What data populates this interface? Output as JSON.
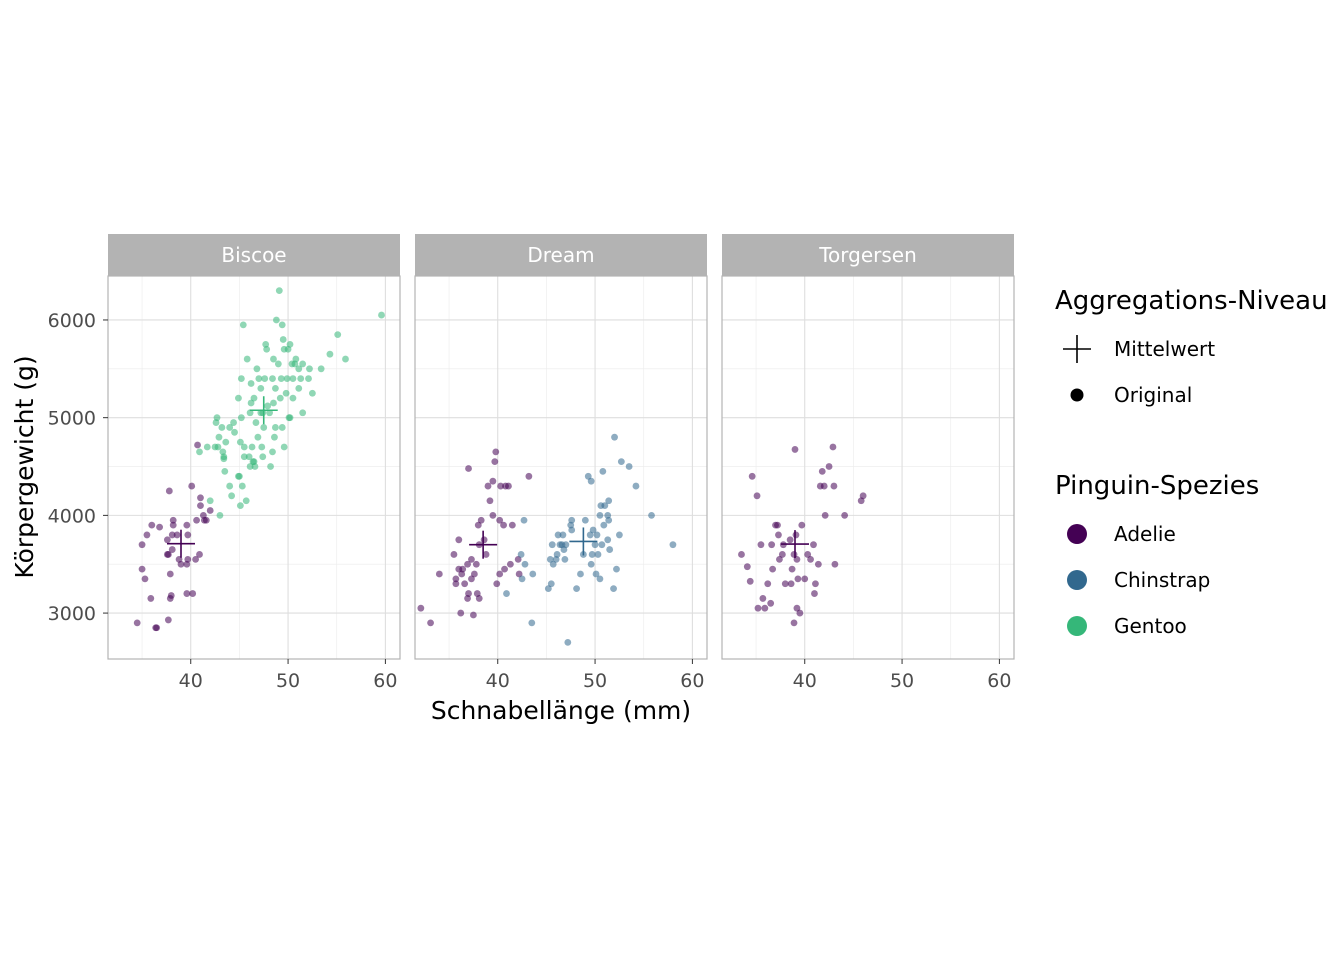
{
  "chart_data": {
    "type": "scatter",
    "xlabel": "Schnabellänge (mm)",
    "ylabel": "Körpergewicht (g)",
    "xlim": [
      31.5,
      61.5
    ],
    "ylim": [
      2530,
      6450
    ],
    "x_ticks": [
      40,
      50,
      60
    ],
    "y_ticks": [
      3000,
      4000,
      5000,
      6000
    ],
    "grid": true,
    "facets": [
      "Biscoe",
      "Dream",
      "Torgersen"
    ],
    "species": [
      {
        "name": "Adelie",
        "color": "#440154"
      },
      {
        "name": "Chinstrap",
        "color": "#31688E"
      },
      {
        "name": "Gentoo",
        "color": "#35B779"
      }
    ],
    "legend": {
      "position": "right",
      "aggregation_title": "Aggregations-Niveau",
      "aggregation_items": [
        {
          "label": "Mittelwert",
          "shape": "cross"
        },
        {
          "label": "Original",
          "shape": "point"
        }
      ],
      "species_title": "Pinguin-Spezies",
      "species_items": [
        "Adelie",
        "Chinstrap",
        "Gentoo"
      ]
    },
    "means": [
      {
        "facet": "Biscoe",
        "species": "Adelie",
        "x": 39.0,
        "y": 3710
      },
      {
        "facet": "Biscoe",
        "species": "Gentoo",
        "x": 47.5,
        "y": 5076
      },
      {
        "facet": "Dream",
        "species": "Adelie",
        "x": 38.5,
        "y": 3700
      },
      {
        "facet": "Dream",
        "species": "Chinstrap",
        "x": 48.8,
        "y": 3733
      },
      {
        "facet": "Torgersen",
        "species": "Adelie",
        "x": 39.0,
        "y": 3706
      }
    ],
    "points": {
      "Biscoe": {
        "Adelie": [
          [
            34.5,
            2900
          ],
          [
            35.0,
            3450
          ],
          [
            35.3,
            3350
          ],
          [
            35.5,
            3800
          ],
          [
            35.0,
            3700
          ],
          [
            35.9,
            3150
          ],
          [
            36.5,
            2850
          ],
          [
            36.4,
            2850
          ],
          [
            37.6,
            3750
          ],
          [
            37.7,
            3600
          ],
          [
            37.8,
            4250
          ],
          [
            37.9,
            3400
          ],
          [
            38.1,
            3650
          ],
          [
            38.2,
            3950
          ],
          [
            38.2,
            3900
          ],
          [
            38.6,
            3800
          ],
          [
            38.8,
            3550
          ],
          [
            39.0,
            3500
          ],
          [
            39.6,
            3500
          ],
          [
            39.7,
            3800
          ],
          [
            39.7,
            3550
          ],
          [
            39.6,
            3900
          ],
          [
            40.1,
            4300
          ],
          [
            40.5,
            3550
          ],
          [
            40.6,
            3950
          ],
          [
            40.9,
            3600
          ],
          [
            41.0,
            4100
          ],
          [
            41.3,
            4000
          ],
          [
            41.4,
            3950
          ],
          [
            41.6,
            3950
          ],
          [
            42.0,
            4050
          ],
          [
            39.6,
            3200
          ],
          [
            40.2,
            3200
          ],
          [
            37.7,
            2930
          ],
          [
            37.9,
            3150
          ],
          [
            38.0,
            3180
          ],
          [
            36.0,
            3900
          ],
          [
            36.8,
            3880
          ],
          [
            40.7,
            4720
          ],
          [
            41.0,
            4180
          ],
          [
            37.6,
            3600
          ],
          [
            38.1,
            3800
          ]
        ],
        "Gentoo": [
          [
            40.9,
            4650
          ],
          [
            41.7,
            4700
          ],
          [
            42.0,
            4150
          ],
          [
            42.5,
            4700
          ],
          [
            42.6,
            4950
          ],
          [
            42.7,
            5000
          ],
          [
            42.8,
            4700
          ],
          [
            43.2,
            4900
          ],
          [
            43.3,
            4650
          ],
          [
            43.4,
            4600
          ],
          [
            43.5,
            4450
          ],
          [
            43.6,
            4750
          ],
          [
            44.0,
            4300
          ],
          [
            44.4,
            4950
          ],
          [
            44.5,
            4850
          ],
          [
            44.9,
            5200
          ],
          [
            45.0,
            4400
          ],
          [
            45.1,
            4750
          ],
          [
            45.2,
            5400
          ],
          [
            45.3,
            4300
          ],
          [
            45.4,
            5950
          ],
          [
            45.5,
            4700
          ],
          [
            45.7,
            4150
          ],
          [
            45.8,
            5600
          ],
          [
            46.0,
            4600
          ],
          [
            46.1,
            5050
          ],
          [
            46.2,
            5150
          ],
          [
            46.3,
            4700
          ],
          [
            46.4,
            4550
          ],
          [
            46.5,
            5200
          ],
          [
            46.6,
            4500
          ],
          [
            46.8,
            5500
          ],
          [
            46.9,
            4800
          ],
          [
            47.0,
            5400
          ],
          [
            47.2,
            5300
          ],
          [
            47.3,
            4700
          ],
          [
            47.4,
            5050
          ],
          [
            47.5,
            4900
          ],
          [
            47.6,
            5400
          ],
          [
            47.7,
            5750
          ],
          [
            47.8,
            5700
          ],
          [
            48.1,
            5050
          ],
          [
            48.2,
            4500
          ],
          [
            48.4,
            5400
          ],
          [
            48.5,
            5600
          ],
          [
            48.6,
            4800
          ],
          [
            48.7,
            5300
          ],
          [
            48.8,
            6000
          ],
          [
            49.0,
            5550
          ],
          [
            49.1,
            6300
          ],
          [
            49.2,
            5200
          ],
          [
            49.3,
            5400
          ],
          [
            49.4,
            5950
          ],
          [
            49.5,
            5800
          ],
          [
            49.6,
            5700
          ],
          [
            49.8,
            5250
          ],
          [
            49.9,
            5400
          ],
          [
            50.0,
            5700
          ],
          [
            50.1,
            5000
          ],
          [
            50.2,
            5750
          ],
          [
            50.4,
            5550
          ],
          [
            50.5,
            5400
          ],
          [
            50.7,
            5550
          ],
          [
            50.8,
            5600
          ],
          [
            51.1,
            5500
          ],
          [
            51.3,
            5400
          ],
          [
            51.5,
            5550
          ],
          [
            52.1,
            5400
          ],
          [
            52.2,
            5500
          ],
          [
            52.5,
            5250
          ],
          [
            53.4,
            5500
          ],
          [
            54.3,
            5650
          ],
          [
            55.1,
            5850
          ],
          [
            55.9,
            5600
          ],
          [
            59.6,
            6050
          ],
          [
            43.0,
            4000
          ],
          [
            44.2,
            4200
          ],
          [
            45.1,
            4100
          ],
          [
            46.5,
            4550
          ],
          [
            47.2,
            5050
          ],
          [
            48.5,
            5150
          ],
          [
            49.4,
            4900
          ],
          [
            50.5,
            5200
          ],
          [
            51.1,
            5300
          ],
          [
            49.6,
            4700
          ],
          [
            50.2,
            5000
          ],
          [
            47.4,
            4600
          ],
          [
            45.5,
            4600
          ],
          [
            44.9,
            4400
          ],
          [
            46.7,
            4950
          ],
          [
            48.4,
            4650
          ],
          [
            46.1,
            4500
          ],
          [
            43.4,
            4580
          ],
          [
            42.9,
            4800
          ],
          [
            45.2,
            5000
          ],
          [
            47.9,
            5120
          ],
          [
            44.0,
            4900
          ],
          [
            46.2,
            5350
          ],
          [
            48.7,
            4900
          ],
          [
            51.5,
            5050
          ]
        ]
      },
      "Dream": {
        "Adelie": [
          [
            32.1,
            3050
          ],
          [
            33.1,
            2900
          ],
          [
            34.0,
            3400
          ],
          [
            35.7,
            3350
          ],
          [
            35.7,
            3300
          ],
          [
            36.0,
            3450
          ],
          [
            36.0,
            3750
          ],
          [
            36.2,
            3000
          ],
          [
            36.3,
            3400
          ],
          [
            36.4,
            3450
          ],
          [
            36.6,
            3300
          ],
          [
            36.9,
            3500
          ],
          [
            37.0,
            3200
          ],
          [
            37.3,
            3550
          ],
          [
            37.3,
            3350
          ],
          [
            37.5,
            2980
          ],
          [
            37.6,
            3400
          ],
          [
            37.8,
            3500
          ],
          [
            38.1,
            3700
          ],
          [
            38.1,
            3150
          ],
          [
            38.3,
            3950
          ],
          [
            38.6,
            3750
          ],
          [
            38.8,
            3600
          ],
          [
            39.0,
            4300
          ],
          [
            39.2,
            4150
          ],
          [
            39.5,
            4350
          ],
          [
            39.7,
            4550
          ],
          [
            39.8,
            4650
          ],
          [
            40.2,
            3950
          ],
          [
            40.2,
            3400
          ],
          [
            40.3,
            4300
          ],
          [
            40.6,
            3900
          ],
          [
            40.7,
            3450
          ],
          [
            41.1,
            4300
          ],
          [
            41.5,
            3900
          ],
          [
            41.3,
            3500
          ],
          [
            42.1,
            3550
          ],
          [
            42.2,
            3400
          ],
          [
            43.2,
            4400
          ],
          [
            37.0,
            4480
          ],
          [
            38.0,
            3900
          ],
          [
            39.5,
            4000
          ],
          [
            35.5,
            3600
          ],
          [
            36.9,
            3150
          ],
          [
            37.9,
            3200
          ],
          [
            40.8,
            4300
          ],
          [
            39.9,
            3300
          ]
        ],
        "Chinstrap": [
          [
            40.9,
            3200
          ],
          [
            42.4,
            3600
          ],
          [
            42.5,
            3350
          ],
          [
            42.8,
            3500
          ],
          [
            43.5,
            2900
          ],
          [
            45.2,
            3250
          ],
          [
            45.4,
            3550
          ],
          [
            45.6,
            3700
          ],
          [
            45.5,
            3300
          ],
          [
            46.0,
            3550
          ],
          [
            46.1,
            3600
          ],
          [
            46.2,
            3800
          ],
          [
            46.4,
            3700
          ],
          [
            46.6,
            3700
          ],
          [
            46.7,
            3800
          ],
          [
            46.8,
            3650
          ],
          [
            46.9,
            3550
          ],
          [
            47.0,
            3700
          ],
          [
            47.5,
            3900
          ],
          [
            47.6,
            3850
          ],
          [
            48.1,
            3250
          ],
          [
            48.5,
            3400
          ],
          [
            49.0,
            3950
          ],
          [
            49.3,
            4400
          ],
          [
            49.5,
            3800
          ],
          [
            49.6,
            3500
          ],
          [
            49.7,
            3600
          ],
          [
            50.0,
            3700
          ],
          [
            50.1,
            3400
          ],
          [
            50.2,
            3800
          ],
          [
            50.3,
            3600
          ],
          [
            50.5,
            4000
          ],
          [
            50.6,
            4100
          ],
          [
            50.8,
            4450
          ],
          [
            51.0,
            4100
          ],
          [
            51.3,
            3750
          ],
          [
            51.4,
            3950
          ],
          [
            51.5,
            3650
          ],
          [
            51.9,
            3250
          ],
          [
            52.0,
            4800
          ],
          [
            52.7,
            4550
          ],
          [
            53.5,
            4500
          ],
          [
            54.2,
            4300
          ],
          [
            55.8,
            4000
          ],
          [
            58.0,
            3700
          ],
          [
            42.7,
            3950
          ],
          [
            47.2,
            2700
          ],
          [
            49.8,
            3850
          ],
          [
            50.5,
            3350
          ],
          [
            48.8,
            3600
          ],
          [
            49.6,
            4350
          ],
          [
            51.3,
            4000
          ],
          [
            50.9,
            3900
          ],
          [
            52.2,
            3450
          ],
          [
            47.6,
            3950
          ],
          [
            43.6,
            3400
          ],
          [
            45.7,
            3500
          ],
          [
            51.4,
            4150
          ],
          [
            50.7,
            3700
          ],
          [
            52.5,
            3800
          ]
        ]
      },
      "Torgersen": {
        "Adelie": [
          [
            33.5,
            3600
          ],
          [
            34.1,
            3475
          ],
          [
            34.4,
            3325
          ],
          [
            34.6,
            4400
          ],
          [
            35.1,
            4200
          ],
          [
            35.2,
            3050
          ],
          [
            35.5,
            3700
          ],
          [
            35.7,
            3150
          ],
          [
            35.9,
            3050
          ],
          [
            36.2,
            3300
          ],
          [
            36.6,
            3700
          ],
          [
            36.7,
            3450
          ],
          [
            37.2,
            3900
          ],
          [
            37.3,
            3800
          ],
          [
            37.7,
            3600
          ],
          [
            37.8,
            3700
          ],
          [
            38.5,
            3750
          ],
          [
            38.6,
            3300
          ],
          [
            38.7,
            3450
          ],
          [
            38.9,
            3600
          ],
          [
            39.0,
            4675
          ],
          [
            39.1,
            3800
          ],
          [
            39.2,
            3550
          ],
          [
            39.3,
            3350
          ],
          [
            39.5,
            3000
          ],
          [
            39.7,
            3900
          ],
          [
            40.3,
            3600
          ],
          [
            40.6,
            3550
          ],
          [
            40.9,
            3700
          ],
          [
            41.1,
            3300
          ],
          [
            41.4,
            3500
          ],
          [
            41.8,
            4450
          ],
          [
            42.1,
            4000
          ],
          [
            42.5,
            4500
          ],
          [
            42.9,
            4700
          ],
          [
            43.1,
            3500
          ],
          [
            44.1,
            4000
          ],
          [
            45.8,
            4150
          ],
          [
            46.0,
            4200
          ],
          [
            41.6,
            4300
          ],
          [
            37.0,
            3900
          ],
          [
            38.9,
            2900
          ],
          [
            42.0,
            4300
          ],
          [
            40.0,
            3350
          ],
          [
            37.4,
            3550
          ],
          [
            41.0,
            3200
          ],
          [
            39.2,
            3050
          ],
          [
            38.0,
            3300
          ],
          [
            36.5,
            3100
          ],
          [
            43.0,
            4300
          ]
        ]
      }
    }
  }
}
